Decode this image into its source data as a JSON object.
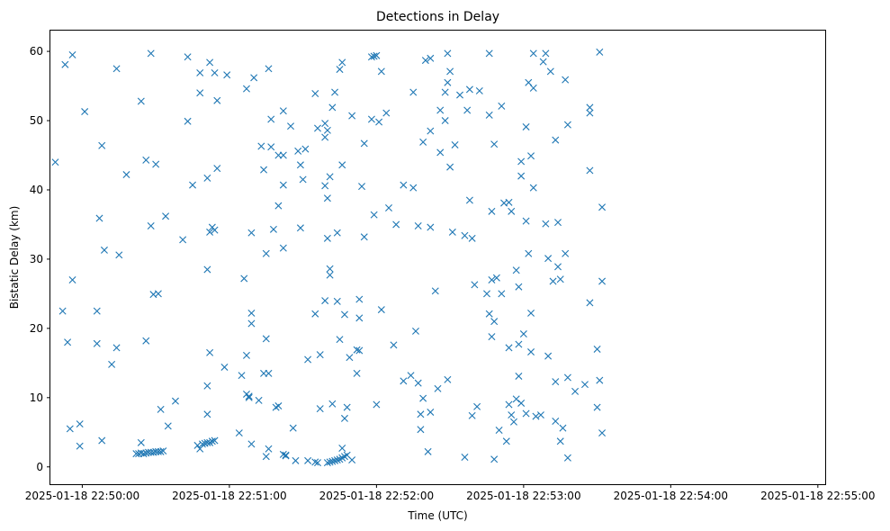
{
  "chart_data": {
    "type": "scatter",
    "title": "Detections in Delay",
    "xlabel": "Time (UTC)",
    "ylabel": "Bistatic Delay (km)",
    "marker": "x",
    "marker_color": "#1f77b4",
    "x_ticks": [
      "2025-01-18 22:50:00",
      "2025-01-18 22:51:00",
      "2025-01-18 22:52:00",
      "2025-01-18 22:53:00",
      "2025-01-18 22:54:00",
      "2025-01-18 22:55:00"
    ],
    "y_ticks": [
      "0",
      "10",
      "20",
      "30",
      "40",
      "50",
      "60"
    ],
    "xlim": [
      "2025-01-18 22:49:47",
      "2025-01-18 22:55:03"
    ],
    "ylim": [
      -2.5,
      63
    ],
    "grid": false,
    "points": [
      [
        "22:49:49",
        44.0
      ],
      [
        "22:49:52",
        22.5
      ],
      [
        "22:49:53",
        58.1
      ],
      [
        "22:49:54",
        18.0
      ],
      [
        "22:49:55",
        5.5
      ],
      [
        "22:49:56",
        27.0
      ],
      [
        "22:49:56",
        59.5
      ],
      [
        "22:49:59",
        3.0
      ],
      [
        "22:49:59",
        6.2
      ],
      [
        "22:50:01",
        51.3
      ],
      [
        "22:50:06",
        22.5
      ],
      [
        "22:50:06",
        17.8
      ],
      [
        "22:50:07",
        35.9
      ],
      [
        "22:50:08",
        46.4
      ],
      [
        "22:50:08",
        3.8
      ],
      [
        "22:50:09",
        31.3
      ],
      [
        "22:50:12",
        14.8
      ],
      [
        "22:50:14",
        57.5
      ],
      [
        "22:50:14",
        17.2
      ],
      [
        "22:50:15",
        30.6
      ],
      [
        "22:50:18",
        42.2
      ],
      [
        "22:50:22",
        1.9
      ],
      [
        "22:50:23",
        1.9
      ],
      [
        "22:50:24",
        3.5
      ],
      [
        "22:50:24",
        2.0
      ],
      [
        "22:50:24",
        52.8
      ],
      [
        "22:50:25",
        1.9
      ],
      [
        "22:50:26",
        44.3
      ],
      [
        "22:50:26",
        18.2
      ],
      [
        "22:50:26",
        2.0
      ],
      [
        "22:50:27",
        2.1
      ],
      [
        "22:50:28",
        34.8
      ],
      [
        "22:50:28",
        59.7
      ],
      [
        "22:50:28",
        2.1
      ],
      [
        "22:50:29",
        24.9
      ],
      [
        "22:50:29",
        2.1
      ],
      [
        "22:50:30",
        43.7
      ],
      [
        "22:50:30",
        2.2
      ],
      [
        "22:50:31",
        25.0
      ],
      [
        "22:50:31",
        2.2
      ],
      [
        "22:50:32",
        8.3
      ],
      [
        "22:50:32",
        2.2
      ],
      [
        "22:50:33",
        2.3
      ],
      [
        "22:50:34",
        36.2
      ],
      [
        "22:50:35",
        5.9
      ],
      [
        "22:50:38",
        9.5
      ],
      [
        "22:50:41",
        32.8
      ],
      [
        "22:50:43",
        49.9
      ],
      [
        "22:50:43",
        59.2
      ],
      [
        "22:50:45",
        40.7
      ],
      [
        "22:50:47",
        3.1
      ],
      [
        "22:50:48",
        56.9
      ],
      [
        "22:50:48",
        54.0
      ],
      [
        "22:50:48",
        2.6
      ],
      [
        "22:50:49",
        3.3
      ],
      [
        "22:50:50",
        3.4
      ],
      [
        "22:50:51",
        41.7
      ],
      [
        "22:50:51",
        28.5
      ],
      [
        "22:50:51",
        7.6
      ],
      [
        "22:50:51",
        11.7
      ],
      [
        "22:50:51",
        3.5
      ],
      [
        "22:50:52",
        33.9
      ],
      [
        "22:50:52",
        58.4
      ],
      [
        "22:50:52",
        3.5
      ],
      [
        "22:50:52",
        16.5
      ],
      [
        "22:50:53",
        34.6
      ],
      [
        "22:50:53",
        3.7
      ],
      [
        "22:50:54",
        56.9
      ],
      [
        "22:50:54",
        34.2
      ],
      [
        "22:50:54",
        3.8
      ],
      [
        "22:50:55",
        43.1
      ],
      [
        "22:50:55",
        52.9
      ],
      [
        "22:50:58",
        14.4
      ],
      [
        "22:50:59",
        56.6
      ],
      [
        "22:51:04",
        4.9
      ],
      [
        "22:51:05",
        13.2
      ],
      [
        "22:51:06",
        27.2
      ],
      [
        "22:51:07",
        16.1
      ],
      [
        "22:51:07",
        54.6
      ],
      [
        "22:51:07",
        10.5
      ],
      [
        "22:51:08",
        10.0
      ],
      [
        "22:51:08",
        10.2
      ],
      [
        "22:51:09",
        22.2
      ],
      [
        "22:51:09",
        20.7
      ],
      [
        "22:51:09",
        3.3
      ],
      [
        "22:51:09",
        33.8
      ],
      [
        "22:51:10",
        56.2
      ],
      [
        "22:51:12",
        9.6
      ],
      [
        "22:51:13",
        46.3
      ],
      [
        "22:51:14",
        13.5
      ],
      [
        "22:51:14",
        42.9
      ],
      [
        "22:51:15",
        1.5
      ],
      [
        "22:51:15",
        18.5
      ],
      [
        "22:51:15",
        30.8
      ],
      [
        "22:51:16",
        57.5
      ],
      [
        "22:51:16",
        2.6
      ],
      [
        "22:51:16",
        13.5
      ],
      [
        "22:51:17",
        50.2
      ],
      [
        "22:51:17",
        46.2
      ],
      [
        "22:51:18",
        34.3
      ],
      [
        "22:51:19",
        8.6
      ],
      [
        "22:51:20",
        8.8
      ],
      [
        "22:51:20",
        37.7
      ],
      [
        "22:51:20",
        45.0
      ],
      [
        "22:51:22",
        1.8
      ],
      [
        "22:51:22",
        51.4
      ],
      [
        "22:51:22",
        45.0
      ],
      [
        "22:51:22",
        40.7
      ],
      [
        "22:51:22",
        31.6
      ],
      [
        "22:51:23",
        1.7
      ],
      [
        "22:51:23",
        1.6
      ],
      [
        "22:51:25",
        49.2
      ],
      [
        "22:51:26",
        5.6
      ],
      [
        "22:51:27",
        0.9
      ],
      [
        "22:51:28",
        45.6
      ],
      [
        "22:51:29",
        43.6
      ],
      [
        "22:51:29",
        34.5
      ],
      [
        "22:51:30",
        41.5
      ],
      [
        "22:51:31",
        45.9
      ],
      [
        "22:51:32",
        0.9
      ],
      [
        "22:51:32",
        15.5
      ],
      [
        "22:51:35",
        53.9
      ],
      [
        "22:51:35",
        0.7
      ],
      [
        "22:51:35",
        22.1
      ],
      [
        "22:51:36",
        48.9
      ],
      [
        "22:51:36",
        0.6
      ],
      [
        "22:51:37",
        16.2
      ],
      [
        "22:51:37",
        8.4
      ],
      [
        "22:51:39",
        47.6
      ],
      [
        "22:51:39",
        40.6
      ],
      [
        "22:51:39",
        49.6
      ],
      [
        "22:51:39",
        24.0
      ],
      [
        "22:51:40",
        0.6
      ],
      [
        "22:51:40",
        33.0
      ],
      [
        "22:51:40",
        48.6
      ],
      [
        "22:51:40",
        38.8
      ],
      [
        "22:51:41",
        28.6
      ],
      [
        "22:51:41",
        0.7
      ],
      [
        "22:51:41",
        27.7
      ],
      [
        "22:51:41",
        41.9
      ],
      [
        "22:51:42",
        9.1
      ],
      [
        "22:51:42",
        0.8
      ],
      [
        "22:51:42",
        51.9
      ],
      [
        "22:51:43",
        54.1
      ],
      [
        "22:51:43",
        0.9
      ],
      [
        "22:51:44",
        1.0
      ],
      [
        "22:51:44",
        23.9
      ],
      [
        "22:51:44",
        33.8
      ],
      [
        "22:51:45",
        18.4
      ],
      [
        "22:51:45",
        57.4
      ],
      [
        "22:51:45",
        1.1
      ],
      [
        "22:51:46",
        58.4
      ],
      [
        "22:51:46",
        2.7
      ],
      [
        "22:51:46",
        1.3
      ],
      [
        "22:51:46",
        43.6
      ],
      [
        "22:51:47",
        7.0
      ],
      [
        "22:51:47",
        22.0
      ],
      [
        "22:51:47",
        1.5
      ],
      [
        "22:51:48",
        1.7
      ],
      [
        "22:51:48",
        8.6
      ],
      [
        "22:51:49",
        15.8
      ],
      [
        "22:51:50",
        1.0
      ],
      [
        "22:51:50",
        50.7
      ],
      [
        "22:51:52",
        13.5
      ],
      [
        "22:51:52",
        16.9
      ],
      [
        "22:51:53",
        24.2
      ],
      [
        "22:51:53",
        21.5
      ],
      [
        "22:51:53",
        16.8
      ],
      [
        "22:51:54",
        40.5
      ],
      [
        "22:51:55",
        33.2
      ],
      [
        "22:51:55",
        46.7
      ],
      [
        "22:51:58",
        59.2
      ],
      [
        "22:51:58",
        50.2
      ],
      [
        "22:51:59",
        36.4
      ],
      [
        "22:51:59",
        59.3
      ],
      [
        "22:52:00",
        59.4
      ],
      [
        "22:52:00",
        9.0
      ],
      [
        "22:52:01",
        49.8
      ],
      [
        "22:52:02",
        57.1
      ],
      [
        "22:52:02",
        22.7
      ],
      [
        "22:52:04",
        51.1
      ],
      [
        "22:52:05",
        37.4
      ],
      [
        "22:52:07",
        17.6
      ],
      [
        "22:52:08",
        35.0
      ],
      [
        "22:52:11",
        40.7
      ],
      [
        "22:52:11",
        12.4
      ],
      [
        "22:52:14",
        13.2
      ],
      [
        "22:52:15",
        40.3
      ],
      [
        "22:52:15",
        54.1
      ],
      [
        "22:52:16",
        19.6
      ],
      [
        "22:52:17",
        34.8
      ],
      [
        "22:52:17",
        12.1
      ],
      [
        "22:52:18",
        5.4
      ],
      [
        "22:52:18",
        7.6
      ],
      [
        "22:52:19",
        9.9
      ],
      [
        "22:52:19",
        46.9
      ],
      [
        "22:52:20",
        58.7
      ],
      [
        "22:52:21",
        2.2
      ],
      [
        "22:52:22",
        48.5
      ],
      [
        "22:52:22",
        7.9
      ],
      [
        "22:52:22",
        59.0
      ],
      [
        "22:52:22",
        34.6
      ],
      [
        "22:52:24",
        25.4
      ],
      [
        "22:52:25",
        11.3
      ],
      [
        "22:52:26",
        51.5
      ],
      [
        "22:52:26",
        45.4
      ],
      [
        "22:52:28",
        54.1
      ],
      [
        "22:52:28",
        50.0
      ],
      [
        "22:52:29",
        59.7
      ],
      [
        "22:52:29",
        55.5
      ],
      [
        "22:52:29",
        12.6
      ],
      [
        "22:52:30",
        43.3
      ],
      [
        "22:52:30",
        57.1
      ],
      [
        "22:52:31",
        33.9
      ],
      [
        "22:52:32",
        46.5
      ],
      [
        "22:52:34",
        53.7
      ],
      [
        "22:52:36",
        33.4
      ],
      [
        "22:52:36",
        1.4
      ],
      [
        "22:52:37",
        51.5
      ],
      [
        "22:52:38",
        38.5
      ],
      [
        "22:52:38",
        54.5
      ],
      [
        "22:52:39",
        33.0
      ],
      [
        "22:52:39",
        7.4
      ],
      [
        "22:52:40",
        26.3
      ],
      [
        "22:52:41",
        8.7
      ],
      [
        "22:52:42",
        54.3
      ],
      [
        "22:52:45",
        25.0
      ],
      [
        "22:52:46",
        50.8
      ],
      [
        "22:52:46",
        22.1
      ],
      [
        "22:52:46",
        59.7
      ],
      [
        "22:52:47",
        27.0
      ],
      [
        "22:52:47",
        18.8
      ],
      [
        "22:52:47",
        36.9
      ],
      [
        "22:52:48",
        1.1
      ],
      [
        "22:52:48",
        21.0
      ],
      [
        "22:52:48",
        46.6
      ],
      [
        "22:52:49",
        27.3
      ],
      [
        "22:52:50",
        5.3
      ],
      [
        "22:52:51",
        25.0
      ],
      [
        "22:52:51",
        52.1
      ],
      [
        "22:52:52",
        38.1
      ],
      [
        "22:52:53",
        3.7
      ],
      [
        "22:52:54",
        38.2
      ],
      [
        "22:52:54",
        17.2
      ],
      [
        "22:52:54",
        9.0
      ],
      [
        "22:52:55",
        36.9
      ],
      [
        "22:52:55",
        7.5
      ],
      [
        "22:52:56",
        6.5
      ],
      [
        "22:52:57",
        28.4
      ],
      [
        "22:52:57",
        9.8
      ],
      [
        "22:52:58",
        26.0
      ],
      [
        "22:52:58",
        13.1
      ],
      [
        "22:52:58",
        17.7
      ],
      [
        "22:52:59",
        9.2
      ],
      [
        "22:52:59",
        42.0
      ],
      [
        "22:52:59",
        44.1
      ],
      [
        "22:53:00",
        19.2
      ],
      [
        "22:53:01",
        35.5
      ],
      [
        "22:53:01",
        49.1
      ],
      [
        "22:53:01",
        7.7
      ],
      [
        "22:53:02",
        55.5
      ],
      [
        "22:53:02",
        30.8
      ],
      [
        "22:53:03",
        16.6
      ],
      [
        "22:53:03",
        22.2
      ],
      [
        "22:53:03",
        44.9
      ],
      [
        "22:53:04",
        54.7
      ],
      [
        "22:53:04",
        40.3
      ],
      [
        "22:53:04",
        59.7
      ],
      [
        "22:53:05",
        7.3
      ],
      [
        "22:53:07",
        7.5
      ],
      [
        "22:53:08",
        58.5
      ],
      [
        "22:53:09",
        35.1
      ],
      [
        "22:53:09",
        59.7
      ],
      [
        "22:53:10",
        30.1
      ],
      [
        "22:53:10",
        16.0
      ],
      [
        "22:53:11",
        57.1
      ],
      [
        "22:53:12",
        26.8
      ],
      [
        "22:53:13",
        6.6
      ],
      [
        "22:53:13",
        12.3
      ],
      [
        "22:53:13",
        47.2
      ],
      [
        "22:53:14",
        35.3
      ],
      [
        "22:53:14",
        28.9
      ],
      [
        "22:53:15",
        27.1
      ],
      [
        "22:53:15",
        3.7
      ],
      [
        "22:53:16",
        5.6
      ],
      [
        "22:53:17",
        55.9
      ],
      [
        "22:53:17",
        30.8
      ],
      [
        "22:53:18",
        1.3
      ],
      [
        "22:53:18",
        49.4
      ],
      [
        "22:53:18",
        12.9
      ],
      [
        "22:53:21",
        10.9
      ],
      [
        "22:53:25",
        11.9
      ],
      [
        "22:53:27",
        51.9
      ],
      [
        "22:53:27",
        51.1
      ],
      [
        "22:53:27",
        23.7
      ],
      [
        "22:53:27",
        42.8
      ],
      [
        "22:53:30",
        17.0
      ],
      [
        "22:53:30",
        8.6
      ],
      [
        "22:53:31",
        59.9
      ],
      [
        "22:53:31",
        12.5
      ],
      [
        "22:53:32",
        4.9
      ],
      [
        "22:53:32",
        37.5
      ],
      [
        "22:53:32",
        26.8
      ]
    ]
  }
}
